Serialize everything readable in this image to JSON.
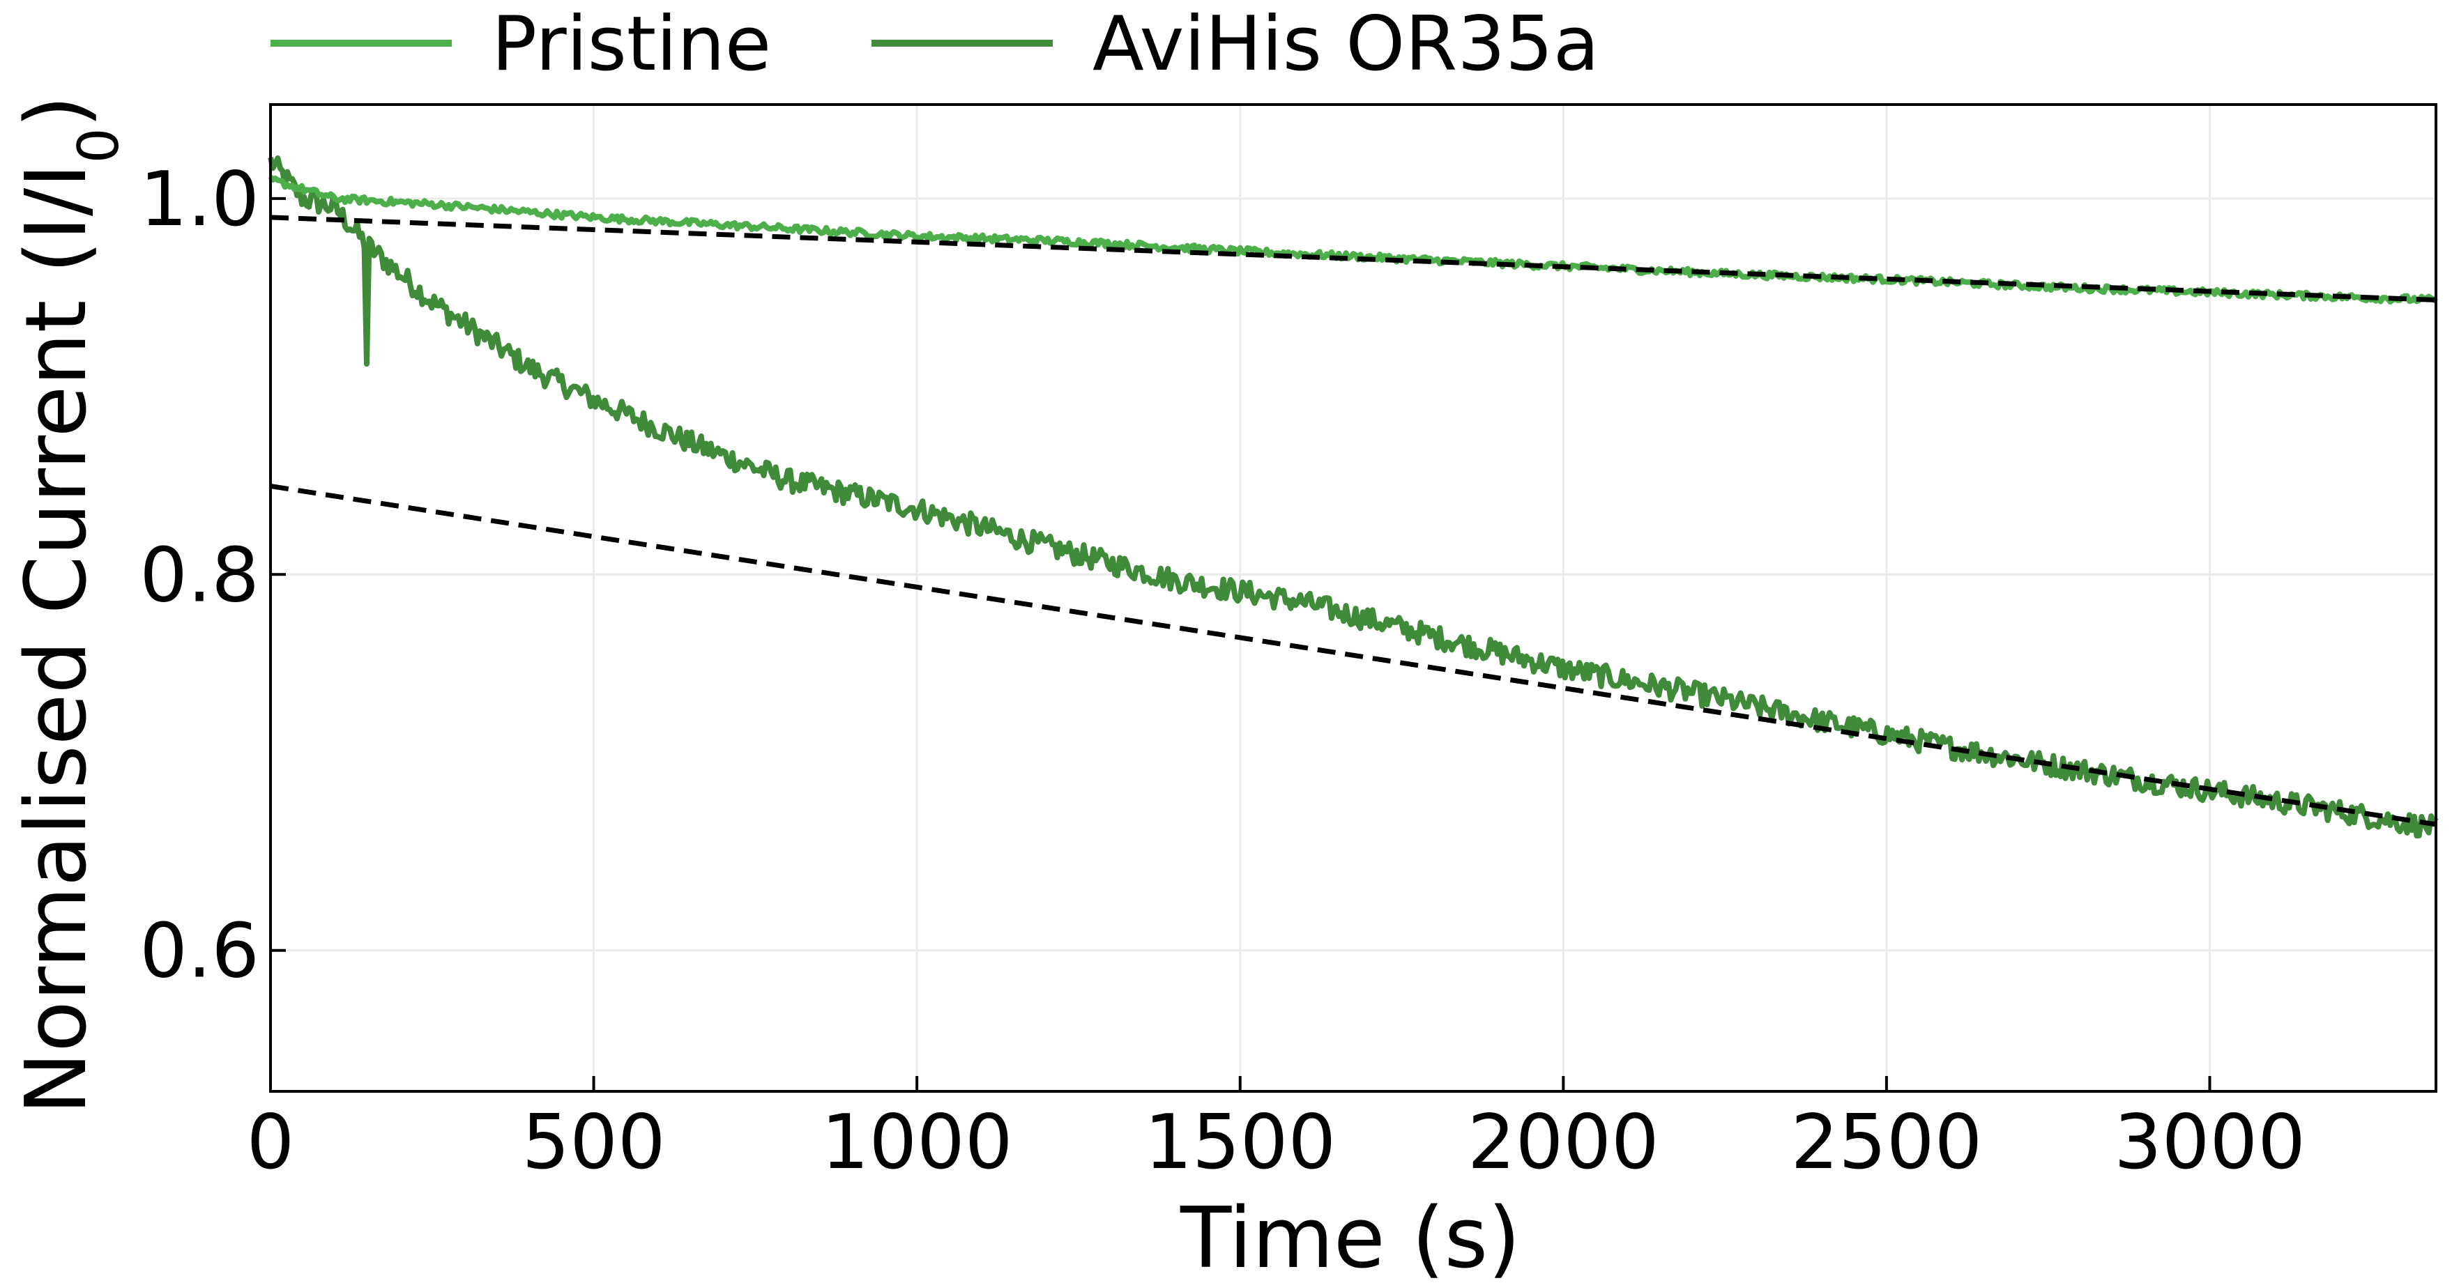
{
  "chart_data": {
    "type": "line",
    "title": "",
    "xlabel": "Time (s)",
    "ylabel": "Normalised Current (I/I",
    "ylabel_subscript": "0",
    "ylabel_close": ")",
    "xlim": [
      0,
      3350
    ],
    "ylim": [
      0.525,
      1.05
    ],
    "xticks": [
      0,
      500,
      1000,
      1500,
      2000,
      2500,
      3000
    ],
    "xtick_labels": [
      "0",
      "500",
      "1000",
      "1500",
      "2000",
      "2500",
      "3000"
    ],
    "yticks": [
      0.6,
      0.8,
      1.0
    ],
    "ytick_labels": [
      "0.6",
      "0.8",
      "1.0"
    ],
    "grid": true,
    "legend_position": "top, above plot",
    "series": [
      {
        "name": "Pristine",
        "color": "#4daf4a",
        "points": [
          [
            0,
            1.01
          ],
          [
            100,
            1.0
          ],
          [
            250,
            0.997
          ],
          [
            500,
            0.99
          ],
          [
            750,
            0.985
          ],
          [
            1000,
            0.98
          ],
          [
            1250,
            0.977
          ],
          [
            1500,
            0.972
          ],
          [
            1750,
            0.968
          ],
          [
            2000,
            0.964
          ],
          [
            2250,
            0.96
          ],
          [
            2500,
            0.957
          ],
          [
            2750,
            0.953
          ],
          [
            3000,
            0.95
          ],
          [
            3350,
            0.946
          ]
        ]
      },
      {
        "name": "AviHis OR35a",
        "color": "#3f8b3a",
        "points": [
          [
            0,
            1.02
          ],
          [
            50,
            1.0
          ],
          [
            100,
            0.995
          ],
          [
            150,
            0.975
          ],
          [
            250,
            0.945
          ],
          [
            400,
            0.91
          ],
          [
            500,
            0.893
          ],
          [
            650,
            0.87
          ],
          [
            800,
            0.85
          ],
          [
            1000,
            0.835
          ],
          [
            1200,
            0.815
          ],
          [
            1400,
            0.797
          ],
          [
            1600,
            0.785
          ],
          [
            1800,
            0.767
          ],
          [
            2000,
            0.75
          ],
          [
            2200,
            0.737
          ],
          [
            2400,
            0.722
          ],
          [
            2600,
            0.708
          ],
          [
            2800,
            0.696
          ],
          [
            3000,
            0.685
          ],
          [
            3200,
            0.674
          ],
          [
            3350,
            0.665
          ]
        ],
        "spike": {
          "x": 148,
          "y": 0.912
        }
      }
    ],
    "fit_lines": [
      {
        "style": "dashed",
        "color": "#000000",
        "points": [
          [
            0,
            0.99
          ],
          [
            3350,
            0.946
          ]
        ]
      },
      {
        "style": "dashed",
        "color": "#000000",
        "points": [
          [
            0,
            0.847
          ],
          [
            3350,
            0.667
          ]
        ]
      }
    ]
  }
}
